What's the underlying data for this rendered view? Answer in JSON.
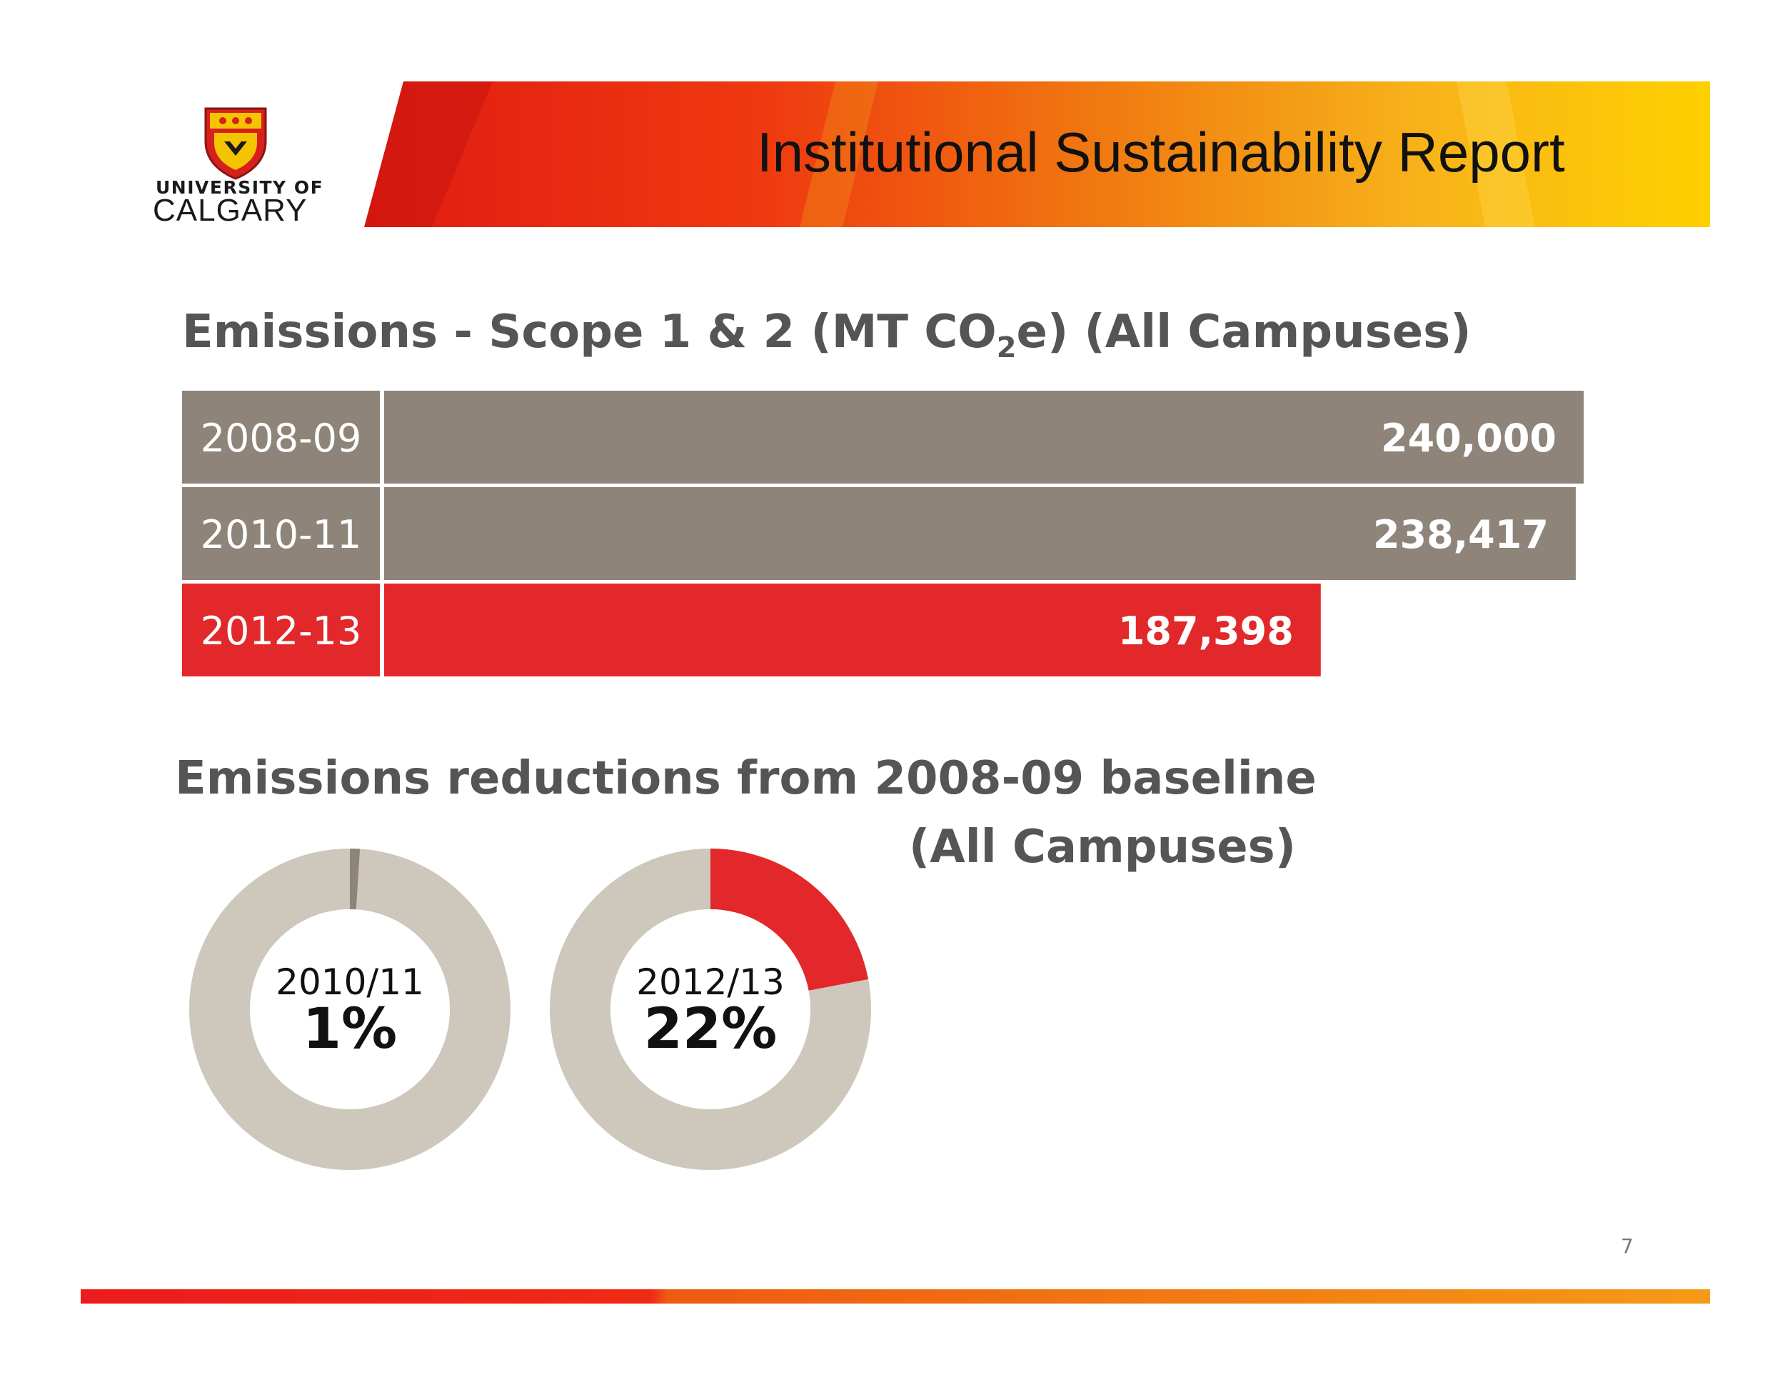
{
  "header": {
    "logo_line1": "UNIVERSITY OF",
    "logo_line2": "CALGARY",
    "title": "Institutional Sustainability Report"
  },
  "colors": {
    "bar_gray": "#8e847a",
    "bar_red": "#e2282a",
    "donut_track": "#cdc7bc",
    "donut_gray_slice": "#8e847a",
    "donut_red_slice": "#e2282a",
    "banner_start": "#e8281a",
    "banner_end": "#ffd200"
  },
  "chart_data": [
    {
      "type": "bar",
      "orientation": "horizontal",
      "title_text": "Emissions - Scope 1 & 2 (MT CO",
      "title_subscript": "2",
      "title_tail": "e) (All Campuses)",
      "categories": [
        "2008-09",
        "2010-11",
        "2012-13"
      ],
      "values": [
        240000,
        238417,
        187398
      ],
      "value_labels": [
        "240,000",
        "238,417",
        "187,398"
      ],
      "colors": [
        "#8e847a",
        "#8e847a",
        "#e2282a"
      ]
    },
    {
      "type": "pie",
      "style": "donut",
      "title_line1": "Emissions reductions from 2008-09 baseline",
      "title_line2": "(All Campuses)",
      "items": [
        {
          "label": "2010/11",
          "value_text": "1%",
          "value": 1,
          "slice_color": "#8e847a"
        },
        {
          "label": "2012/13",
          "value_text": "22%",
          "value": 22,
          "slice_color": "#e2282a"
        }
      ]
    }
  ],
  "footer": {
    "page_number": "7"
  }
}
